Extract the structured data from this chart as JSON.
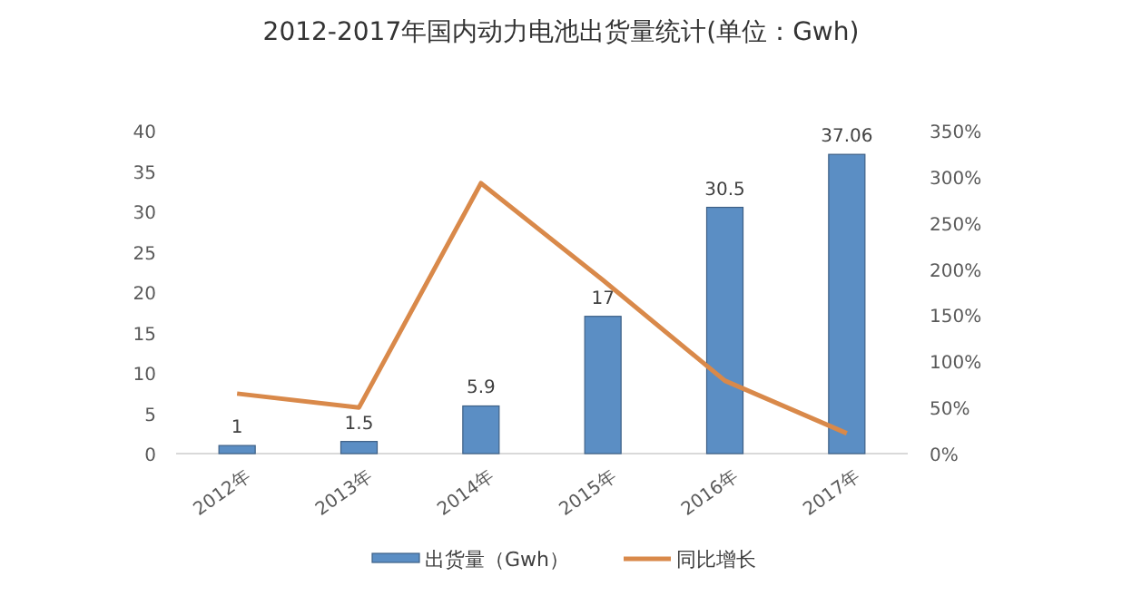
{
  "chart_data": {
    "type": "bar",
    "title": "2012-2017年国内动力电池出货量统计(单位：Gwh)",
    "categories": [
      "2012年",
      "2013年",
      "2014年",
      "2015年",
      "2016年",
      "2017年"
    ],
    "series": [
      {
        "name": "出货量（Gwh）",
        "color": "#5b8ec4",
        "values": [
          1,
          1.5,
          5.9,
          17,
          30.5,
          37.06
        ],
        "value_labels": [
          "1",
          "1.5",
          "5.9",
          "17",
          "30.5",
          "37.06"
        ]
      },
      {
        "name": "同比增长",
        "type": "line",
        "axis": "y2",
        "color": "#d9894a",
        "values": [
          65,
          50,
          293,
          188,
          79,
          22
        ]
      }
    ],
    "ylim": [
      0,
      40
    ],
    "yticks": [
      0,
      5,
      10,
      15,
      20,
      25,
      30,
      35,
      40
    ],
    "y2lim": [
      0,
      350
    ],
    "y2ticks": [
      {
        "value": 0,
        "label": "0%"
      },
      {
        "value": 50,
        "label": "50%"
      },
      {
        "value": 100,
        "label": "100%"
      },
      {
        "value": 150,
        "label": "150%"
      },
      {
        "value": 200,
        "label": "200%"
      },
      {
        "value": 250,
        "label": "250%"
      },
      {
        "value": 300,
        "label": "300%"
      },
      {
        "value": 350,
        "label": "350%"
      }
    ],
    "legend": "bottom",
    "marker": "none"
  }
}
